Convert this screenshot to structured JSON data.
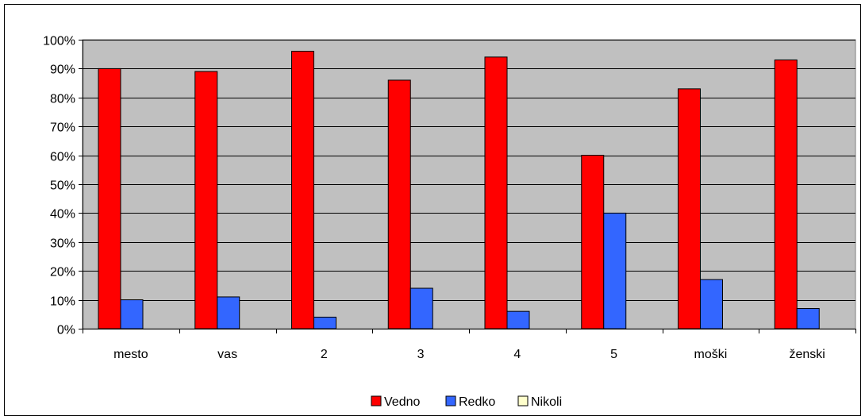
{
  "chart_data": {
    "type": "bar",
    "categories": [
      "mesto",
      "vas",
      "2",
      "3",
      "4",
      "5",
      "moški",
      "ženski"
    ],
    "series": [
      {
        "name": "Vedno",
        "values": [
          90,
          89,
          96,
          86,
          94,
          60,
          83,
          93
        ],
        "color": "#ff0000"
      },
      {
        "name": "Redko",
        "values": [
          10,
          11,
          4,
          14,
          6,
          40,
          17,
          7
        ],
        "color": "#3366ff"
      },
      {
        "name": "Nikoli",
        "values": [
          0,
          0,
          0,
          0,
          0,
          0,
          0,
          0
        ],
        "color": "#ffffcc"
      }
    ],
    "y_ticks": [
      "0%",
      "10%",
      "20%",
      "30%",
      "40%",
      "50%",
      "60%",
      "70%",
      "80%",
      "90%",
      "100%"
    ],
    "ylim": [
      0,
      100
    ],
    "y_unit": "%",
    "grid": true,
    "plot_background": "#c0c0c0",
    "legend_position": "bottom"
  }
}
